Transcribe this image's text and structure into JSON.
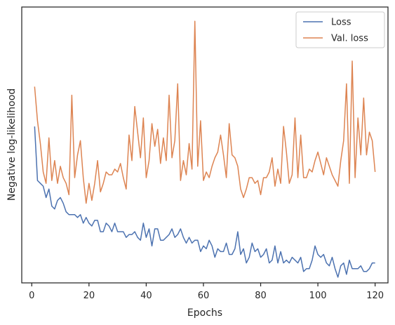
{
  "chart_data": {
    "type": "line",
    "title": "",
    "xlabel": "Epochs",
    "ylabel": "Negative log-likelihood",
    "xlim": [
      -3.5,
      124.5
    ],
    "ylim": [
      0.03,
      1.0
    ],
    "x_ticks": [
      0,
      20,
      40,
      60,
      80,
      100,
      120
    ],
    "y_ticks": [],
    "grid": false,
    "legend": "top-right",
    "series": [
      {
        "name": "Loss",
        "color": "#4c72b0",
        "x": [
          1,
          2,
          3,
          4,
          5,
          6,
          7,
          8,
          9,
          10,
          11,
          12,
          13,
          14,
          15,
          16,
          17,
          18,
          19,
          20,
          21,
          22,
          23,
          24,
          25,
          26,
          27,
          28,
          29,
          30,
          31,
          32,
          33,
          34,
          35,
          36,
          37,
          38,
          39,
          40,
          41,
          42,
          43,
          44,
          45,
          46,
          47,
          48,
          49,
          50,
          51,
          52,
          53,
          54,
          55,
          56,
          57,
          58,
          59,
          60,
          61,
          62,
          63,
          64,
          65,
          66,
          67,
          68,
          69,
          70,
          71,
          72,
          73,
          74,
          75,
          76,
          77,
          78,
          79,
          80,
          81,
          82,
          83,
          84,
          85,
          86,
          87,
          88,
          89,
          90,
          91,
          92,
          93,
          94,
          95,
          96,
          97,
          98,
          99,
          100,
          101,
          102,
          103,
          104,
          105,
          106,
          107,
          108,
          109,
          110,
          111,
          112,
          113,
          114,
          115,
          116,
          117,
          118,
          119,
          120
        ],
        "values": [
          0.58,
          0.39,
          0.38,
          0.37,
          0.33,
          0.36,
          0.3,
          0.29,
          0.32,
          0.33,
          0.31,
          0.28,
          0.27,
          0.27,
          0.27,
          0.26,
          0.27,
          0.24,
          0.26,
          0.24,
          0.23,
          0.25,
          0.25,
          0.21,
          0.21,
          0.24,
          0.23,
          0.21,
          0.24,
          0.21,
          0.21,
          0.21,
          0.19,
          0.2,
          0.2,
          0.21,
          0.19,
          0.18,
          0.24,
          0.19,
          0.22,
          0.16,
          0.22,
          0.22,
          0.18,
          0.18,
          0.19,
          0.2,
          0.22,
          0.19,
          0.2,
          0.22,
          0.19,
          0.17,
          0.19,
          0.17,
          0.18,
          0.18,
          0.14,
          0.16,
          0.15,
          0.18,
          0.16,
          0.12,
          0.15,
          0.14,
          0.14,
          0.17,
          0.13,
          0.13,
          0.15,
          0.21,
          0.13,
          0.15,
          0.1,
          0.12,
          0.17,
          0.14,
          0.15,
          0.12,
          0.13,
          0.15,
          0.1,
          0.11,
          0.16,
          0.1,
          0.14,
          0.1,
          0.11,
          0.1,
          0.12,
          0.11,
          0.1,
          0.12,
          0.07,
          0.08,
          0.08,
          0.11,
          0.16,
          0.13,
          0.12,
          0.13,
          0.1,
          0.09,
          0.12,
          0.08,
          0.05,
          0.09,
          0.1,
          0.06,
          0.11,
          0.08,
          0.08,
          0.08,
          0.09,
          0.07,
          0.07,
          0.08,
          0.1,
          0.1
        ]
      },
      {
        "name": "Val. loss",
        "color": "#dd8452",
        "x": [
          1,
          2,
          3,
          4,
          5,
          6,
          7,
          8,
          9,
          10,
          11,
          12,
          13,
          14,
          15,
          16,
          17,
          18,
          19,
          20,
          21,
          22,
          23,
          24,
          25,
          26,
          27,
          28,
          29,
          30,
          31,
          32,
          33,
          34,
          35,
          36,
          37,
          38,
          39,
          40,
          41,
          42,
          43,
          44,
          45,
          46,
          47,
          48,
          49,
          50,
          51,
          52,
          53,
          54,
          55,
          56,
          57,
          58,
          59,
          60,
          61,
          62,
          63,
          64,
          65,
          66,
          67,
          68,
          69,
          70,
          71,
          72,
          73,
          74,
          75,
          76,
          77,
          78,
          79,
          80,
          81,
          82,
          83,
          84,
          85,
          86,
          87,
          88,
          89,
          90,
          91,
          92,
          93,
          94,
          95,
          96,
          97,
          98,
          99,
          100,
          101,
          102,
          103,
          104,
          105,
          106,
          107,
          108,
          109,
          110,
          111,
          112,
          113,
          114,
          115,
          116,
          117,
          118,
          119,
          120
        ],
        "values": [
          0.72,
          0.6,
          0.52,
          0.42,
          0.38,
          0.54,
          0.39,
          0.46,
          0.38,
          0.44,
          0.4,
          0.38,
          0.34,
          0.69,
          0.4,
          0.48,
          0.53,
          0.4,
          0.31,
          0.38,
          0.32,
          0.38,
          0.46,
          0.35,
          0.38,
          0.42,
          0.41,
          0.41,
          0.43,
          0.42,
          0.45,
          0.4,
          0.36,
          0.55,
          0.46,
          0.65,
          0.56,
          0.47,
          0.61,
          0.4,
          0.46,
          0.59,
          0.51,
          0.57,
          0.45,
          0.54,
          0.46,
          0.69,
          0.47,
          0.53,
          0.73,
          0.39,
          0.46,
          0.41,
          0.52,
          0.43,
          0.95,
          0.44,
          0.6,
          0.39,
          0.42,
          0.4,
          0.44,
          0.47,
          0.49,
          0.55,
          0.48,
          0.4,
          0.59,
          0.48,
          0.47,
          0.44,
          0.36,
          0.33,
          0.36,
          0.4,
          0.4,
          0.38,
          0.39,
          0.34,
          0.4,
          0.4,
          0.42,
          0.47,
          0.37,
          0.43,
          0.38,
          0.58,
          0.49,
          0.38,
          0.41,
          0.61,
          0.4,
          0.55,
          0.4,
          0.4,
          0.43,
          0.42,
          0.46,
          0.49,
          0.45,
          0.41,
          0.47,
          0.44,
          0.41,
          0.39,
          0.37,
          0.46,
          0.53,
          0.73,
          0.38,
          0.81,
          0.4,
          0.61,
          0.48,
          0.68,
          0.48,
          0.56,
          0.53,
          0.42
        ]
      }
    ]
  }
}
